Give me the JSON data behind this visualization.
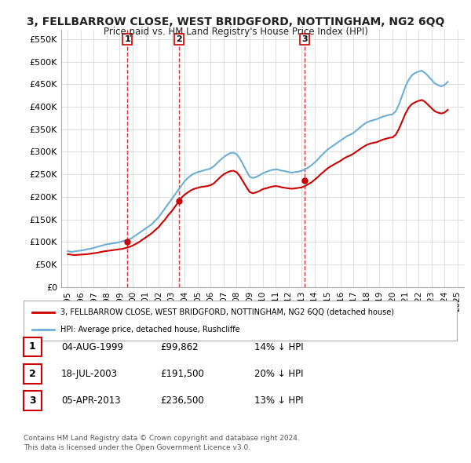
{
  "title": "3, FELLBARROW CLOSE, WEST BRIDGFORD, NOTTINGHAM, NG2 6QQ",
  "subtitle": "Price paid vs. HM Land Registry's House Price Index (HPI)",
  "hpi_label": "HPI: Average price, detached house, Rushcliffe",
  "property_label": "3, FELLBARROW CLOSE, WEST BRIDGFORD, NOTTINGHAM, NG2 6QQ (detached house)",
  "ylabel": "",
  "xlim_start": 1994.5,
  "xlim_end": 2025.5,
  "ylim_min": 0,
  "ylim_max": 570000,
  "yticks": [
    0,
    50000,
    100000,
    150000,
    200000,
    250000,
    300000,
    350000,
    400000,
    450000,
    500000,
    550000
  ],
  "ytick_labels": [
    "£0",
    "£50K",
    "£100K",
    "£150K",
    "£200K",
    "£250K",
    "£300K",
    "£350K",
    "£400K",
    "£450K",
    "£500K",
    "£550K"
  ],
  "sale_dates": [
    1999.586,
    2003.542,
    2013.259
  ],
  "sale_prices": [
    99862,
    191500,
    236500
  ],
  "sale_labels": [
    "1",
    "2",
    "3"
  ],
  "sale_label_dates": [
    1999.0,
    2003.2,
    2013.2
  ],
  "vline_dates": [
    1999.586,
    2003.542,
    2013.259
  ],
  "table_rows": [
    {
      "num": "1",
      "date": "04-AUG-1999",
      "price": "£99,862",
      "hpi": "14% ↓ HPI"
    },
    {
      "num": "2",
      "date": "18-JUL-2003",
      "price": "£191,500",
      "hpi": "20% ↓ HPI"
    },
    {
      "num": "3",
      "date": "05-APR-2013",
      "price": "£236,500",
      "hpi": "13% ↓ HPI"
    }
  ],
  "footer": "Contains HM Land Registry data © Crown copyright and database right 2024.\nThis data is licensed under the Open Government Licence v3.0.",
  "hpi_color": "#6baed6",
  "property_color": "#cc0000",
  "vline_color": "#cc0000",
  "bg_color": "#ffffff",
  "grid_color": "#dddddd",
  "title_color": "#222222",
  "hpi_x": [
    1995.0,
    1995.25,
    1995.5,
    1995.75,
    1996.0,
    1996.25,
    1996.5,
    1996.75,
    1997.0,
    1997.25,
    1997.5,
    1997.75,
    1998.0,
    1998.25,
    1998.5,
    1998.75,
    1999.0,
    1999.25,
    1999.5,
    1999.75,
    2000.0,
    2000.25,
    2000.5,
    2000.75,
    2001.0,
    2001.25,
    2001.5,
    2001.75,
    2002.0,
    2002.25,
    2002.5,
    2002.75,
    2003.0,
    2003.25,
    2003.5,
    2003.75,
    2004.0,
    2004.25,
    2004.5,
    2004.75,
    2005.0,
    2005.25,
    2005.5,
    2005.75,
    2006.0,
    2006.25,
    2006.5,
    2006.75,
    2007.0,
    2007.25,
    2007.5,
    2007.75,
    2008.0,
    2008.25,
    2008.5,
    2008.75,
    2009.0,
    2009.25,
    2009.5,
    2009.75,
    2010.0,
    2010.25,
    2010.5,
    2010.75,
    2011.0,
    2011.25,
    2011.5,
    2011.75,
    2012.0,
    2012.25,
    2012.5,
    2012.75,
    2013.0,
    2013.25,
    2013.5,
    2013.75,
    2014.0,
    2014.25,
    2014.5,
    2014.75,
    2015.0,
    2015.25,
    2015.5,
    2015.75,
    2016.0,
    2016.25,
    2016.5,
    2016.75,
    2017.0,
    2017.25,
    2017.5,
    2017.75,
    2018.0,
    2018.25,
    2018.5,
    2018.75,
    2019.0,
    2019.25,
    2019.5,
    2019.75,
    2020.0,
    2020.25,
    2020.5,
    2020.75,
    2021.0,
    2021.25,
    2021.5,
    2021.75,
    2022.0,
    2022.25,
    2022.5,
    2022.75,
    2023.0,
    2023.25,
    2023.5,
    2023.75,
    2024.0,
    2024.25
  ],
  "hpi_y": [
    80000,
    78000,
    79000,
    80000,
    81000,
    82000,
    84000,
    85000,
    87000,
    89000,
    91000,
    93000,
    95000,
    96000,
    97000,
    98000,
    100000,
    102000,
    104000,
    106000,
    110000,
    115000,
    120000,
    125000,
    130000,
    135000,
    140000,
    148000,
    155000,
    165000,
    175000,
    185000,
    195000,
    205000,
    215000,
    225000,
    235000,
    242000,
    248000,
    252000,
    255000,
    257000,
    259000,
    261000,
    263000,
    268000,
    275000,
    282000,
    288000,
    293000,
    297000,
    298000,
    295000,
    285000,
    272000,
    258000,
    245000,
    242000,
    244000,
    248000,
    252000,
    255000,
    258000,
    260000,
    261000,
    260000,
    258000,
    257000,
    255000,
    254000,
    255000,
    256000,
    258000,
    261000,
    265000,
    270000,
    276000,
    283000,
    291000,
    298000,
    305000,
    310000,
    315000,
    320000,
    325000,
    330000,
    335000,
    338000,
    342000,
    348000,
    354000,
    360000,
    365000,
    368000,
    370000,
    372000,
    375000,
    378000,
    380000,
    382000,
    383000,
    390000,
    405000,
    425000,
    445000,
    460000,
    470000,
    475000,
    478000,
    480000,
    475000,
    468000,
    460000,
    452000,
    448000,
    445000,
    448000,
    455000
  ],
  "prop_x": [
    1995.0,
    1995.25,
    1995.5,
    1995.75,
    1996.0,
    1996.25,
    1996.5,
    1996.75,
    1997.0,
    1997.25,
    1997.5,
    1997.75,
    1998.0,
    1998.25,
    1998.5,
    1998.75,
    1999.0,
    1999.25,
    1999.5,
    1999.75,
    2000.0,
    2000.25,
    2000.5,
    2000.75,
    2001.0,
    2001.25,
    2001.5,
    2001.75,
    2002.0,
    2002.25,
    2002.5,
    2002.75,
    2003.0,
    2003.25,
    2003.5,
    2003.75,
    2004.0,
    2004.25,
    2004.5,
    2004.75,
    2005.0,
    2005.25,
    2005.5,
    2005.75,
    2006.0,
    2006.25,
    2006.5,
    2006.75,
    2007.0,
    2007.25,
    2007.5,
    2007.75,
    2008.0,
    2008.25,
    2008.5,
    2008.75,
    2009.0,
    2009.25,
    2009.5,
    2009.75,
    2010.0,
    2010.25,
    2010.5,
    2010.75,
    2011.0,
    2011.25,
    2011.5,
    2011.75,
    2012.0,
    2012.25,
    2012.5,
    2012.75,
    2013.0,
    2013.25,
    2013.5,
    2013.75,
    2014.0,
    2014.25,
    2014.5,
    2014.75,
    2015.0,
    2015.25,
    2015.5,
    2015.75,
    2016.0,
    2016.25,
    2016.5,
    2016.75,
    2017.0,
    2017.25,
    2017.5,
    2017.75,
    2018.0,
    2018.25,
    2018.5,
    2018.75,
    2019.0,
    2019.25,
    2019.5,
    2019.75,
    2020.0,
    2020.25,
    2020.5,
    2020.75,
    2021.0,
    2021.25,
    2021.5,
    2021.75,
    2022.0,
    2022.25,
    2022.5,
    2022.75,
    2023.0,
    2023.25,
    2023.5,
    2023.75,
    2024.0,
    2024.25
  ],
  "prop_y": [
    73000,
    72000,
    71000,
    71500,
    72000,
    72500,
    73000,
    74000,
    75000,
    76000,
    77500,
    79000,
    80000,
    81000,
    82000,
    83000,
    84000,
    85000,
    87000,
    89000,
    92000,
    96000,
    100000,
    105000,
    110000,
    115000,
    120000,
    127000,
    133000,
    142000,
    150000,
    160000,
    168000,
    178000,
    188000,
    198000,
    205000,
    210000,
    215000,
    218000,
    220000,
    222000,
    223000,
    224000,
    226000,
    230000,
    237000,
    244000,
    250000,
    254000,
    257000,
    258000,
    255000,
    246000,
    234000,
    222000,
    211000,
    208000,
    210000,
    213000,
    217000,
    219000,
    221000,
    223000,
    224000,
    223000,
    221000,
    220000,
    219000,
    218000,
    219000,
    220000,
    221000,
    224000,
    228000,
    232000,
    238000,
    244000,
    251000,
    257000,
    263000,
    268000,
    272000,
    276000,
    280000,
    285000,
    289000,
    292000,
    296000,
    301000,
    306000,
    311000,
    315000,
    318000,
    320000,
    321000,
    324000,
    327000,
    329000,
    331000,
    332000,
    338000,
    351000,
    368000,
    385000,
    398000,
    406000,
    410000,
    413000,
    415000,
    411000,
    404000,
    397000,
    390000,
    387000,
    385000,
    387000,
    393000
  ]
}
